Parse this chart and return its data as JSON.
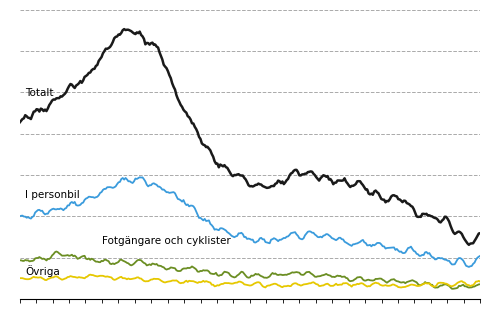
{
  "labels": {
    "totalt": "Totalt",
    "personbil": "I personbil",
    "fotgangare": "Fotgängare och cyklister",
    "ovriga": "Övriga"
  },
  "colors": {
    "totalt": "#1a1a1a",
    "personbil": "#3a9bdc",
    "fotgangare": "#6b8e23",
    "ovriga": "#e6c800"
  },
  "linewidths": {
    "totalt": 1.8,
    "personbil": 1.3,
    "fotgangare": 1.3,
    "ovriga": 1.3
  },
  "grid_style": "--",
  "grid_color": "#aaaaaa",
  "background_color": "#ffffff",
  "n_points": 327,
  "ylim": [
    0,
    1400
  ],
  "xlim": [
    0,
    326
  ],
  "yticks": [
    200,
    400,
    600,
    800,
    1000,
    1200,
    1400
  ],
  "n_gridlines": 7
}
